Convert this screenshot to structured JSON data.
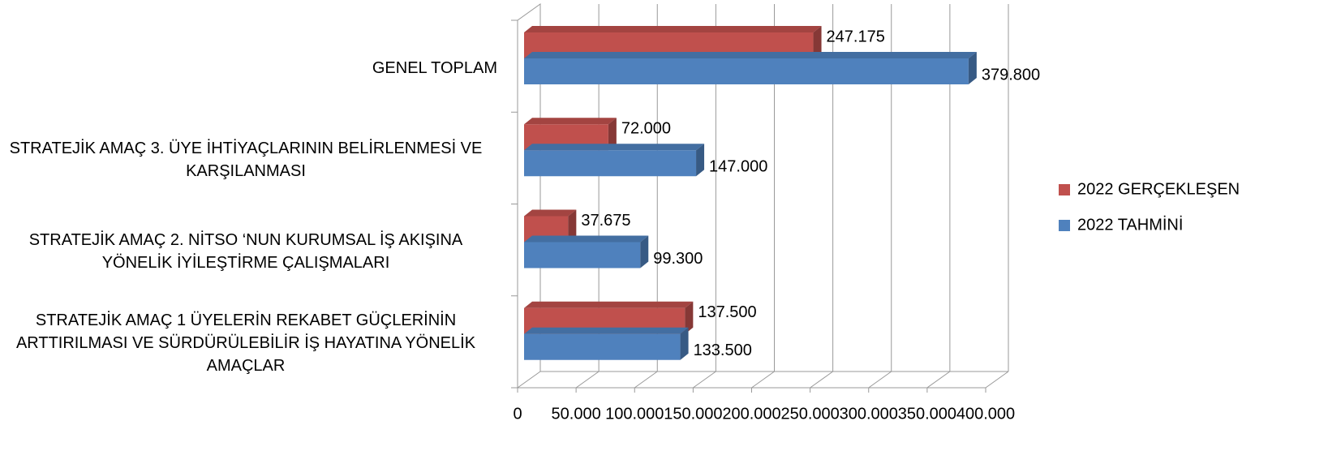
{
  "chart_data": {
    "type": "bar3d",
    "categories": [
      "STRATEJİK AMAÇ 1 ÜYELERİN REKABET GÜÇLERİNİN ARTTIRILMASI VE SÜRDÜRÜLEBİLİR İŞ HAYATINA YÖNELİK AMAÇLAR",
      "STRATEJİK AMAÇ 2. NİTSO ‘NUN KURUMSAL İŞ AKIŞINA YÖNELİK İYİLEŞTİRME ÇALIŞMALARI",
      "STRATEJİK AMAÇ 3. ÜYE İHTİYAÇLARININ BELİRLENMESİ VE KARŞILANMASI",
      "GENEL TOPLAM"
    ],
    "series": [
      {
        "name": "2022 GERÇEKLEŞEN",
        "color": "#c0504d",
        "values": [
          137500,
          37675,
          72000,
          247175
        ],
        "value_labels": [
          "137.500",
          "37.675",
          "72.000",
          "247.175"
        ]
      },
      {
        "name": "2022 TAHMİNİ",
        "color": "#4f81bd",
        "values": [
          133500,
          99300,
          147000,
          379800
        ],
        "value_labels": [
          "133.500",
          "99.300",
          "147.000",
          "379.800"
        ]
      }
    ],
    "xlim": [
      0,
      400000
    ],
    "xticks": [
      0,
      {
        "value": 50000,
        "label": "50.000"
      },
      {
        "value": 100000,
        "label": "100.000"
      },
      {
        "value": 150000,
        "label": "150.000"
      },
      {
        "value": 200000,
        "label": "200.000"
      },
      {
        "value": 250000,
        "label": "250.000"
      },
      {
        "value": 300000,
        "label": "300.000"
      },
      {
        "value": 350000,
        "label": "350.000"
      },
      {
        "value": 400000,
        "label": "400.000"
      }
    ],
    "grid": true,
    "legend": "right"
  }
}
